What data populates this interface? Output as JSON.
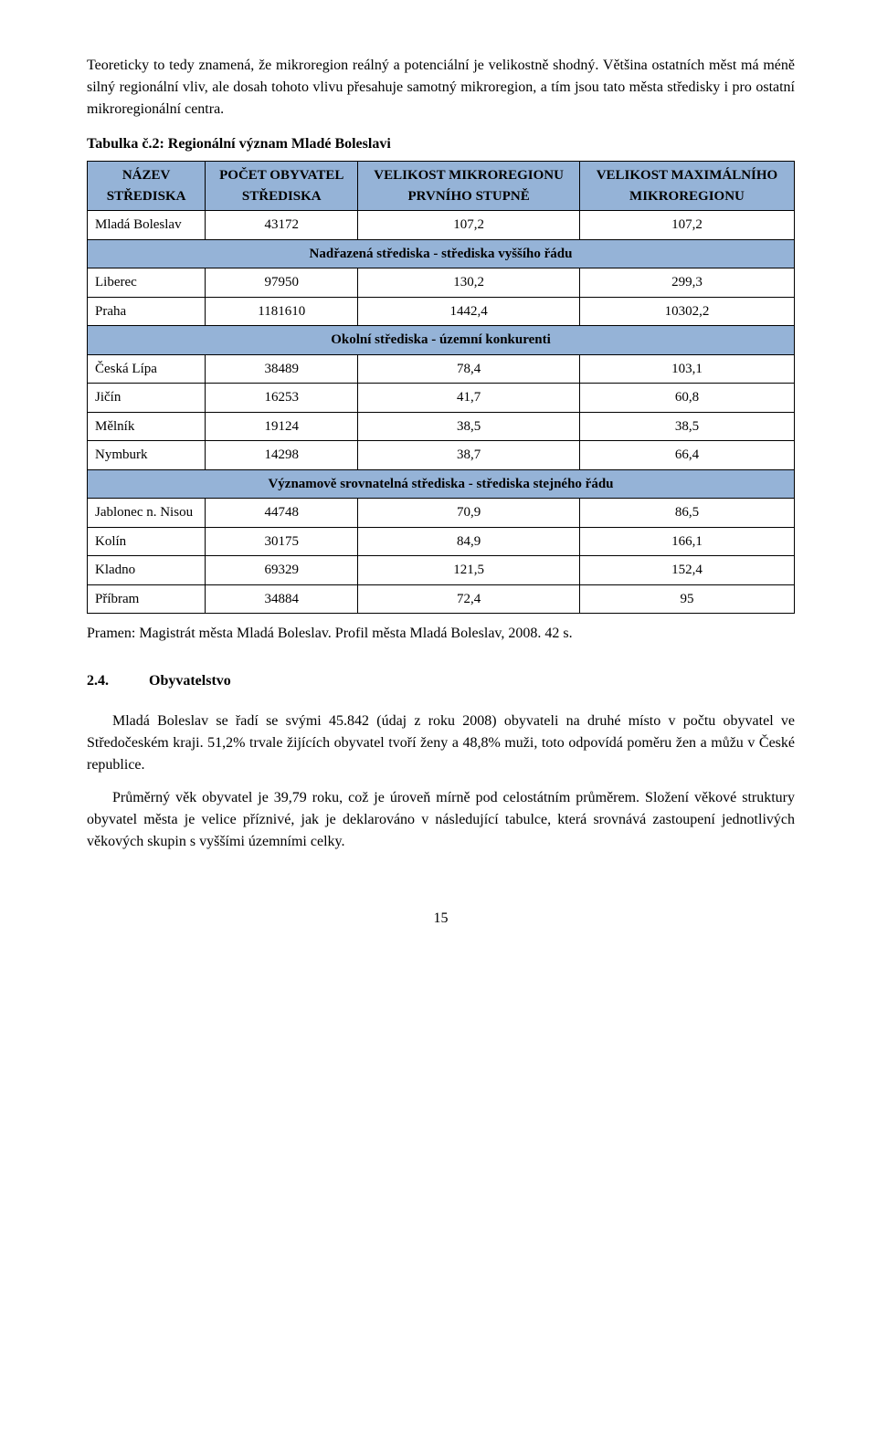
{
  "para1": "Teoreticky to tedy znamená, že mikroregion reálný a potenciální je velikostně shodný. Většina ostatních měst má méně silný regionální vliv, ale dosah tohoto vlivu přesahuje samotný mikroregion, a tím jsou tato města středisky i pro ostatní mikroregionální centra.",
  "table_caption": "Tabulka č.2: Regionální význam Mladé Boleslavi",
  "headers": {
    "c1": "NÁZEV STŘEDISKA",
    "c2": "POČET OBYVATEL STŘEDISKA",
    "c3": "VELIKOST MIKROREGIONU PRVNÍHO STUPNĚ",
    "c4": "VELIKOST MAXIMÁLNÍHO MIKROREGIONU"
  },
  "rows": {
    "r1": {
      "name": "Mladá Boleslav",
      "pop": "43172",
      "v1": "107,2",
      "v2": "107,2"
    },
    "sec1": "Nadřazená střediska - střediska vyššího řádu",
    "r2": {
      "name": "Liberec",
      "pop": "97950",
      "v1": "130,2",
      "v2": "299,3"
    },
    "r3": {
      "name": "Praha",
      "pop": "1181610",
      "v1": "1442,4",
      "v2": "10302,2"
    },
    "sec2": "Okolní střediska - územní konkurenti",
    "r4": {
      "name": "Česká Lípa",
      "pop": "38489",
      "v1": "78,4",
      "v2": "103,1"
    },
    "r5": {
      "name": "Jičín",
      "pop": "16253",
      "v1": "41,7",
      "v2": "60,8"
    },
    "r6": {
      "name": "Mělník",
      "pop": "19124",
      "v1": "38,5",
      "v2": "38,5"
    },
    "r7": {
      "name": "Nymburk",
      "pop": "14298",
      "v1": "38,7",
      "v2": "66,4"
    },
    "sec3": "Významově srovnatelná střediska - střediska stejného řádu",
    "r8": {
      "name": "Jablonec n. Nisou",
      "pop": "44748",
      "v1": "70,9",
      "v2": "86,5"
    },
    "r9": {
      "name": "Kolín",
      "pop": "30175",
      "v1": "84,9",
      "v2": "166,1"
    },
    "r10": {
      "name": "Kladno",
      "pop": "69329",
      "v1": "121,5",
      "v2": "152,4"
    },
    "r11": {
      "name": "Příbram",
      "pop": "34884",
      "v1": "72,4",
      "v2": "95"
    }
  },
  "source": "Pramen: Magistrát města Mladá Boleslav. Profil města Mladá Boleslav, 2008. 42 s.",
  "heading": {
    "num": "2.4.",
    "title": "Obyvatelstvo"
  },
  "para2": "Mladá Boleslav se řadí se svými 45.842 (údaj z roku 2008) obyvateli na druhé místo v počtu obyvatel ve Středočeském kraji. 51,2% trvale žijících obyvatel tvoří ženy a 48,8% muži, toto odpovídá poměru žen a můžu v České republice.",
  "para3": "Průměrný věk obyvatel je 39,79 roku, což je úroveň mírně pod celostátním průměrem. Složení věkové struktury obyvatel města je velice příznivé, jak je deklarováno v následující tabulce, která srovnává zastoupení jednotlivých věkových skupin s vyššími územními celky.",
  "page_number": "15"
}
